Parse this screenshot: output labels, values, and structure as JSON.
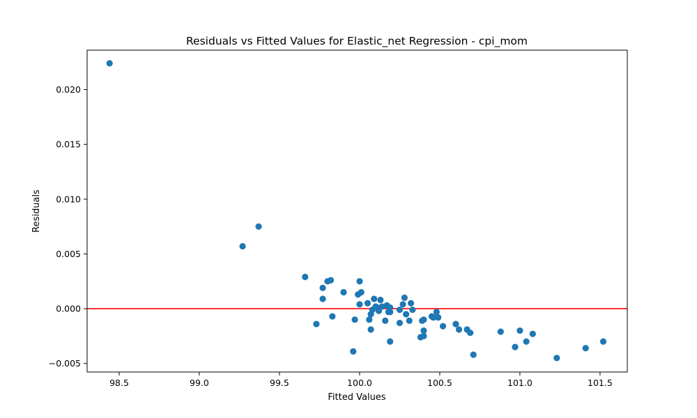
{
  "chart_data": {
    "type": "scatter",
    "title": "Residuals vs Fitted Values for Elastic_net Regression - cpi_mom",
    "xlabel": "Fitted Values",
    "ylabel": "Residuals",
    "xlim": [
      98.3,
      101.67
    ],
    "ylim": [
      -0.00578,
      0.0236
    ],
    "xticks": [
      98.5,
      99.0,
      99.5,
      100.0,
      100.5,
      101.0,
      101.5
    ],
    "xtick_labels": [
      "98.5",
      "99.0",
      "99.5",
      "100.0",
      "100.5",
      "101.0",
      "101.5"
    ],
    "yticks": [
      -0.005,
      0.0,
      0.005,
      0.01,
      0.015,
      0.02
    ],
    "ytick_labels": [
      "−0.005",
      "0.000",
      "0.005",
      "0.010",
      "0.015",
      "0.020"
    ],
    "reference_line": {
      "y": 0.0,
      "color": "#ff0000"
    },
    "grid": false,
    "marker_color": "#1f77b4",
    "series": [
      {
        "points": [
          [
            98.44,
            0.0224
          ],
          [
            99.27,
            0.0057
          ],
          [
            99.37,
            0.0075
          ],
          [
            99.66,
            0.0029
          ],
          [
            99.77,
            0.0019
          ],
          [
            99.77,
            0.0009
          ],
          [
            99.8,
            0.0025
          ],
          [
            99.82,
            0.0026
          ],
          [
            99.73,
            -0.0014
          ],
          [
            99.83,
            -0.0007
          ],
          [
            99.9,
            0.0015
          ],
          [
            99.96,
            -0.0039
          ],
          [
            99.97,
            -0.001
          ],
          [
            99.99,
            0.0013
          ],
          [
            100.0,
            0.0025
          ],
          [
            100.0,
            0.0004
          ],
          [
            100.01,
            0.0015
          ],
          [
            100.05,
            0.0005
          ],
          [
            100.06,
            -0.001
          ],
          [
            100.07,
            -0.0019
          ],
          [
            100.07,
            -0.0005
          ],
          [
            100.08,
            -0.0001
          ],
          [
            100.09,
            0.0009
          ],
          [
            100.1,
            0.0002
          ],
          [
            100.11,
            0.0001
          ],
          [
            100.12,
            -0.0002
          ],
          [
            100.13,
            0.0008
          ],
          [
            100.14,
            0.0002
          ],
          [
            100.16,
            -0.0011
          ],
          [
            100.17,
            0.0003
          ],
          [
            100.18,
            -0.0003
          ],
          [
            100.19,
            0.0001
          ],
          [
            100.19,
            -0.003
          ],
          [
            100.19,
            -0.0003
          ],
          [
            100.25,
            -0.0013
          ],
          [
            100.25,
            -0.0001
          ],
          [
            100.27,
            0.0004
          ],
          [
            100.28,
            0.001
          ],
          [
            100.29,
            -0.0005
          ],
          [
            100.31,
            -0.0011
          ],
          [
            100.32,
            0.0005
          ],
          [
            100.33,
            -0.0001
          ],
          [
            100.38,
            -0.0026
          ],
          [
            100.39,
            -0.0011
          ],
          [
            100.4,
            -0.001
          ],
          [
            100.4,
            -0.0025
          ],
          [
            100.4,
            -0.002
          ],
          [
            100.45,
            -0.0007
          ],
          [
            100.46,
            -0.0008
          ],
          [
            100.48,
            -0.0003
          ],
          [
            100.49,
            -0.0008
          ],
          [
            100.52,
            -0.0016
          ],
          [
            100.6,
            -0.0014
          ],
          [
            100.62,
            -0.0019
          ],
          [
            100.67,
            -0.0019
          ],
          [
            100.69,
            -0.0022
          ],
          [
            100.71,
            -0.0042
          ],
          [
            100.88,
            -0.0021
          ],
          [
            100.97,
            -0.0035
          ],
          [
            101.0,
            -0.002
          ],
          [
            101.04,
            -0.003
          ],
          [
            101.08,
            -0.0023
          ],
          [
            101.23,
            -0.0045
          ],
          [
            101.41,
            -0.0036
          ],
          [
            101.52,
            -0.003
          ]
        ]
      }
    ]
  }
}
